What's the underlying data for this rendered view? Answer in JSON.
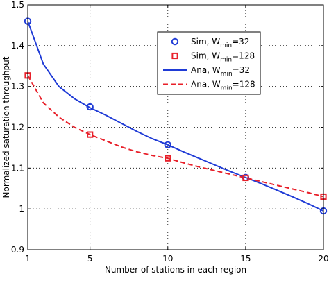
{
  "chart_data": {
    "type": "line",
    "xlabel": "Number of stations in each region",
    "ylabel": "Normalized saturation throughput",
    "xlim": [
      1,
      20
    ],
    "ylim": [
      0.9,
      1.5
    ],
    "x_ticks": [
      1,
      5,
      10,
      15,
      20
    ],
    "y_ticks": [
      0.9,
      1,
      1.1,
      1.2,
      1.3,
      1.4,
      1.5
    ],
    "grid": true,
    "legend_position": "top-right",
    "series": [
      {
        "name": "Sim, W_min=32",
        "legend_main": "Sim, W",
        "legend_sub": "min",
        "legend_tail": "=32",
        "kind": "marker",
        "marker": "circle",
        "color": "#1f3bd6",
        "x": [
          1,
          5,
          10,
          15,
          20
        ],
        "y": [
          1.46,
          1.25,
          1.157,
          1.077,
          0.995
        ]
      },
      {
        "name": "Sim, W_min=128",
        "legend_main": "Sim, W",
        "legend_sub": "min",
        "legend_tail": "=128",
        "kind": "marker",
        "marker": "square",
        "color": "#e8202a",
        "x": [
          1,
          5,
          10,
          15,
          20
        ],
        "y": [
          1.327,
          1.182,
          1.124,
          1.076,
          1.03
        ]
      },
      {
        "name": "Ana, W_min=32",
        "legend_main": "Ana, W",
        "legend_sub": "min",
        "legend_tail": "=32",
        "kind": "line",
        "dash": "solid",
        "color": "#1f3bd6",
        "x": [
          1,
          2,
          3,
          4,
          5,
          6,
          7,
          8,
          9,
          10,
          11,
          12,
          13,
          14,
          15,
          16,
          17,
          18,
          19,
          20
        ],
        "y": [
          1.46,
          1.355,
          1.3,
          1.27,
          1.248,
          1.23,
          1.21,
          1.19,
          1.172,
          1.157,
          1.14,
          1.124,
          1.108,
          1.092,
          1.077,
          1.062,
          1.046,
          1.03,
          1.013,
          0.995
        ]
      },
      {
        "name": "Ana, W_min=128",
        "legend_main": "Ana, W",
        "legend_sub": "min",
        "legend_tail": "=128",
        "kind": "line",
        "dash": "dashed",
        "color": "#e8202a",
        "x": [
          1,
          2,
          3,
          4,
          5,
          6,
          7,
          8,
          9,
          10,
          11,
          12,
          13,
          14,
          15,
          16,
          17,
          18,
          19,
          20
        ],
        "y": [
          1.327,
          1.26,
          1.225,
          1.2,
          1.182,
          1.167,
          1.152,
          1.14,
          1.131,
          1.124,
          1.113,
          1.103,
          1.094,
          1.085,
          1.076,
          1.067,
          1.058,
          1.049,
          1.04,
          1.03
        ]
      }
    ]
  }
}
